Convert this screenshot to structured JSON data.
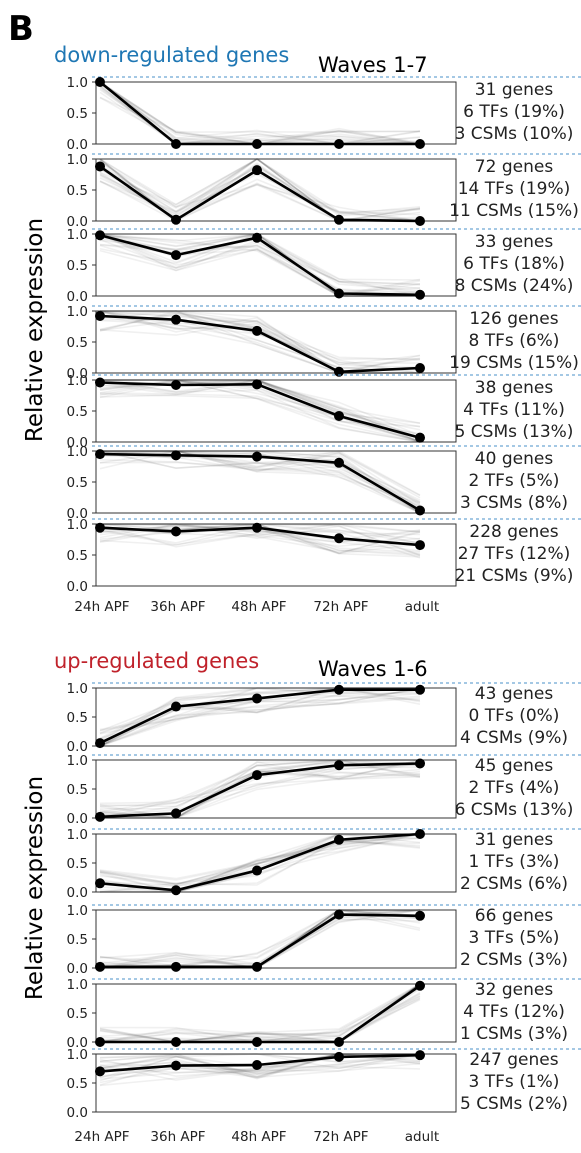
{
  "panel_label": "B",
  "colors": {
    "down_title": "#1f77b4",
    "up_title": "#c0222b",
    "divider": "#4a90c8"
  },
  "sections": [
    {
      "title": "down-regulated genes",
      "waves": "Waves 1-7",
      "ylabel": "Relative expression",
      "title_color": "#1f77b4"
    },
    {
      "title": "up-regulated genes",
      "waves": "Waves 1-6",
      "ylabel": "Relative expression",
      "title_color": "#c0222b"
    }
  ],
  "chart_data": [
    {
      "type": "line",
      "title": "down-regulated genes",
      "subtitle": "Waves 1-7",
      "ylabel": "Relative expression",
      "x": [
        "24h APF",
        "36h APF",
        "48h APF",
        "72h APF",
        "adult"
      ],
      "ylim": [
        0,
        1
      ],
      "yticks": [
        "0.0",
        "0.5",
        "1.0"
      ],
      "panels": [
        {
          "mean": [
            1.0,
            0.0,
            0.0,
            0.0,
            0.0
          ],
          "annotation": [
            "31 genes",
            "6 TFs (19%)",
            "3 CSMs (10%)"
          ]
        },
        {
          "mean": [
            0.88,
            0.02,
            0.82,
            0.02,
            0.0
          ],
          "annotation": [
            "72 genes",
            "14 TFs (19%)",
            "11 CSMs (15%)"
          ]
        },
        {
          "mean": [
            0.98,
            0.66,
            0.94,
            0.04,
            0.02
          ],
          "annotation": [
            "33 genes",
            "6 TFs (18%)",
            "8 CSMs (24%)"
          ]
        },
        {
          "mean": [
            0.92,
            0.86,
            0.68,
            0.02,
            0.08
          ],
          "annotation": [
            "126 genes",
            "8 TFs (6%)",
            "19 CSMs (15%)"
          ]
        },
        {
          "mean": [
            0.96,
            0.92,
            0.93,
            0.42,
            0.07
          ],
          "annotation": [
            "38 genes",
            "4 TFs (11%)",
            "5 CSMs (13%)"
          ]
        },
        {
          "mean": [
            0.95,
            0.93,
            0.91,
            0.81,
            0.04
          ],
          "annotation": [
            "40 genes",
            "2 TFs (5%)",
            "3 CSMs (8%)"
          ]
        },
        {
          "mean": [
            0.94,
            0.88,
            0.94,
            0.77,
            0.66
          ],
          "annotation": [
            "228 genes",
            "27 TFs (12%)",
            "21 CSMs (9%)"
          ]
        }
      ]
    },
    {
      "type": "line",
      "title": "up-regulated genes",
      "subtitle": "Waves 1-6",
      "ylabel": "Relative expression",
      "x": [
        "24h APF",
        "36h APF",
        "48h APF",
        "72h APF",
        "adult"
      ],
      "ylim": [
        0,
        1
      ],
      "yticks": [
        "0.0",
        "0.5",
        "1.0"
      ],
      "panels": [
        {
          "mean": [
            0.05,
            0.68,
            0.82,
            0.97,
            0.97
          ],
          "annotation": [
            "43 genes",
            "0 TFs (0%)",
            "4 CSMs (9%)"
          ]
        },
        {
          "mean": [
            0.02,
            0.08,
            0.74,
            0.91,
            0.94
          ],
          "annotation": [
            "45 genes",
            "2 TFs (4%)",
            "6 CSMs (13%)"
          ]
        },
        {
          "mean": [
            0.15,
            0.03,
            0.37,
            0.9,
            1.0
          ],
          "annotation": [
            "31 genes",
            "1 TFs (3%)",
            "2 CSMs (6%)"
          ]
        },
        {
          "mean": [
            0.02,
            0.02,
            0.02,
            0.92,
            0.9
          ],
          "annotation": [
            "66 genes",
            "3 TFs (5%)",
            "2 CSMs (3%)"
          ]
        },
        {
          "mean": [
            0.0,
            0.0,
            0.0,
            0.0,
            0.97
          ],
          "annotation": [
            "32 genes",
            "4 TFs (12%)",
            "1 CSMs (3%)"
          ]
        },
        {
          "mean": [
            0.7,
            0.8,
            0.81,
            0.95,
            0.98
          ],
          "annotation": [
            "247 genes",
            "3 TFs (1%)",
            "5 CSMs (2%)"
          ]
        }
      ]
    }
  ]
}
